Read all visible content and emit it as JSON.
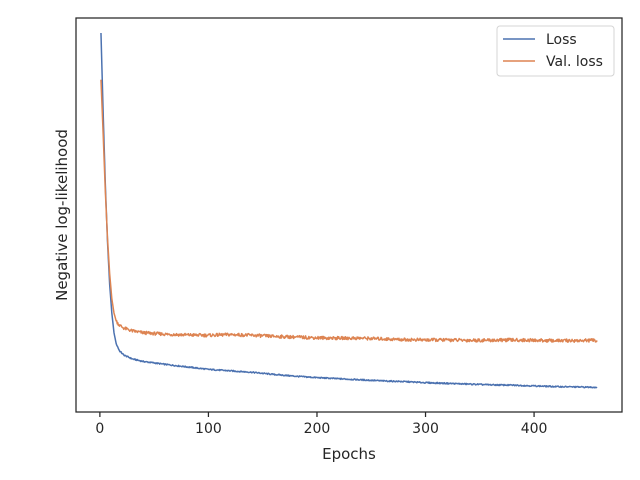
{
  "chart_data": {
    "type": "line",
    "title": "",
    "xlabel": "Epochs",
    "ylabel": "Negative log-likelihood",
    "xlim": [
      -22,
      481
    ],
    "ylim": [
      0,
      100
    ],
    "xticks": [
      0,
      100,
      200,
      300,
      400
    ],
    "y_tick_labels_shown": false,
    "grid": false,
    "legend_position": "top-right",
    "series": [
      {
        "name": "Loss",
        "color": "#4c72b0",
        "points": [
          [
            1,
            100
          ],
          [
            3,
            78
          ],
          [
            5,
            58
          ],
          [
            7,
            42
          ],
          [
            9,
            30
          ],
          [
            11,
            22
          ],
          [
            13,
            16.5
          ],
          [
            15,
            13.5
          ],
          [
            18,
            11.5
          ],
          [
            22,
            10.3
          ],
          [
            30,
            9.2
          ],
          [
            40,
            8.5
          ],
          [
            60,
            7.7
          ],
          [
            80,
            7.0
          ],
          [
            100,
            6.3
          ],
          [
            120,
            5.9
          ],
          [
            140,
            5.5
          ],
          [
            160,
            4.9
          ],
          [
            180,
            4.4
          ],
          [
            200,
            4.0
          ],
          [
            220,
            3.7
          ],
          [
            240,
            3.4
          ],
          [
            260,
            3.1
          ],
          [
            280,
            2.9
          ],
          [
            300,
            2.6
          ],
          [
            320,
            2.4
          ],
          [
            340,
            2.2
          ],
          [
            360,
            2.0
          ],
          [
            380,
            1.9
          ],
          [
            400,
            1.7
          ],
          [
            420,
            1.5
          ],
          [
            440,
            1.4
          ],
          [
            458,
            1.3
          ]
        ]
      },
      {
        "name": "Val. loss",
        "color": "#dd8452",
        "points": [
          [
            1,
            87
          ],
          [
            3,
            72
          ],
          [
            5,
            56
          ],
          [
            7,
            43
          ],
          [
            9,
            33
          ],
          [
            11,
            26
          ],
          [
            13,
            22
          ],
          [
            15,
            19.8
          ],
          [
            18,
            18.6
          ],
          [
            22,
            17.8
          ],
          [
            30,
            17.0
          ],
          [
            40,
            16.5
          ],
          [
            60,
            16.1
          ],
          [
            80,
            15.9
          ],
          [
            100,
            15.8
          ],
          [
            120,
            16.0
          ],
          [
            140,
            15.8
          ],
          [
            160,
            15.5
          ],
          [
            180,
            15.3
          ],
          [
            200,
            15.1
          ],
          [
            220,
            15.0
          ],
          [
            240,
            15.0
          ],
          [
            260,
            14.8
          ],
          [
            280,
            14.6
          ],
          [
            300,
            14.5
          ],
          [
            320,
            14.5
          ],
          [
            340,
            14.4
          ],
          [
            360,
            14.4
          ],
          [
            380,
            14.5
          ],
          [
            400,
            14.4
          ],
          [
            420,
            14.3
          ],
          [
            440,
            14.3
          ],
          [
            458,
            14.4
          ]
        ]
      }
    ]
  }
}
